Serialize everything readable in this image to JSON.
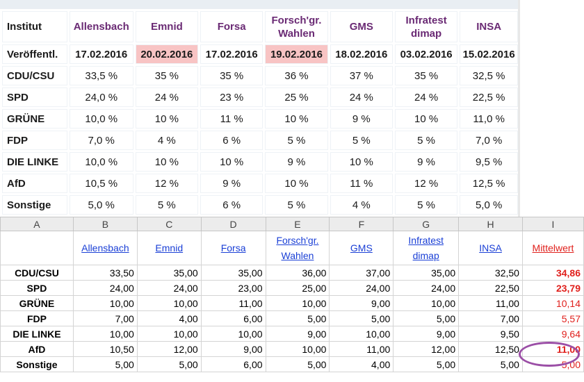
{
  "poll_table": {
    "row_header": "Institut",
    "date_label": "Veröffentl.",
    "institutes": [
      "Allensbach",
      "Emnid",
      "Forsa",
      "Forsch'gr. Wahlen",
      "GMS",
      "Infratest dimap",
      "INSA"
    ],
    "institute_lines": [
      [
        "Allensbach"
      ],
      [
        "Emnid"
      ],
      [
        "Forsa"
      ],
      [
        "Forsch'gr.",
        "Wahlen"
      ],
      [
        "GMS"
      ],
      [
        "Infratest",
        "dimap"
      ],
      [
        "INSA"
      ]
    ],
    "dates": [
      "17.02.2016",
      "20.02.2016",
      "17.02.2016",
      "19.02.2016",
      "18.02.2016",
      "03.02.2016",
      "15.02.2016"
    ],
    "highlighted_dates": [
      1,
      3
    ],
    "highlight_color": "#f8c4c4",
    "parties": [
      {
        "name": "CDU/CSU",
        "values": [
          "33,5 %",
          "35 %",
          "35 %",
          "36 %",
          "37 %",
          "35 %",
          "32,5 %"
        ]
      },
      {
        "name": "SPD",
        "values": [
          "24,0 %",
          "24 %",
          "23 %",
          "25 %",
          "24 %",
          "24 %",
          "22,5 %"
        ]
      },
      {
        "name": "GRÜNE",
        "values": [
          "10,0 %",
          "10 %",
          "11 %",
          "10 %",
          "9 %",
          "10 %",
          "11,0 %"
        ]
      },
      {
        "name": "FDP",
        "values": [
          "7,0 %",
          "4 %",
          "6 %",
          "5 %",
          "5 %",
          "5 %",
          "7,0 %"
        ]
      },
      {
        "name": "DIE LINKE",
        "values": [
          "10,0 %",
          "10 %",
          "10 %",
          "9 %",
          "10 %",
          "9 %",
          "9,5 %"
        ]
      },
      {
        "name": "AfD",
        "values": [
          "10,5 %",
          "12 %",
          "9 %",
          "10 %",
          "11 %",
          "12 %",
          "12,5 %"
        ]
      },
      {
        "name": "Sonstige",
        "values": [
          "5,0 %",
          "5 %",
          "6 %",
          "5 %",
          "4 %",
          "5 %",
          "5,0 %"
        ]
      }
    ]
  },
  "spreadsheet": {
    "column_letters": [
      "A",
      "B",
      "C",
      "D",
      "E",
      "F",
      "G",
      "H",
      "I"
    ],
    "selected_column": 8,
    "headers": [
      [
        "Allensbach"
      ],
      [
        "Emnid"
      ],
      [
        "Forsa"
      ],
      [
        "Forsch'gr.",
        "Wahlen"
      ],
      [
        "GMS"
      ],
      [
        "Infratest",
        "dimap"
      ],
      [
        "INSA"
      ]
    ],
    "mean_header": "Mittelwert",
    "link_color": "#1a3fd6",
    "mean_color": "#e0201c",
    "rows": [
      {
        "party": "CDU/CSU",
        "values": [
          "33,50",
          "35,00",
          "35,00",
          "36,00",
          "37,00",
          "35,00",
          "32,50"
        ],
        "mean": "34,86",
        "bold": true
      },
      {
        "party": "SPD",
        "values": [
          "24,00",
          "24,00",
          "23,00",
          "25,00",
          "24,00",
          "24,00",
          "22,50"
        ],
        "mean": "23,79",
        "bold": true
      },
      {
        "party": "GRÜNE",
        "values": [
          "10,00",
          "10,00",
          "11,00",
          "10,00",
          "9,00",
          "10,00",
          "11,00"
        ],
        "mean": "10,14",
        "bold": false
      },
      {
        "party": "FDP",
        "values": [
          "7,00",
          "4,00",
          "6,00",
          "5,00",
          "5,00",
          "5,00",
          "7,00"
        ],
        "mean": "5,57",
        "bold": false
      },
      {
        "party": "DIE LINKE",
        "values": [
          "10,00",
          "10,00",
          "10,00",
          "9,00",
          "10,00",
          "9,00",
          "9,50"
        ],
        "mean": "9,64",
        "bold": false
      },
      {
        "party": "AfD",
        "values": [
          "10,50",
          "12,00",
          "9,00",
          "10,00",
          "11,00",
          "12,00",
          "12,50"
        ],
        "mean": "11,00",
        "bold": true
      },
      {
        "party": "Sonstige",
        "values": [
          "5,00",
          "5,00",
          "6,00",
          "5,00",
          "4,00",
          "5,00",
          "5,00"
        ],
        "mean": "5,00",
        "bold": false
      }
    ],
    "circled_row": "AfD",
    "circle_color": "#9b4fa6"
  }
}
